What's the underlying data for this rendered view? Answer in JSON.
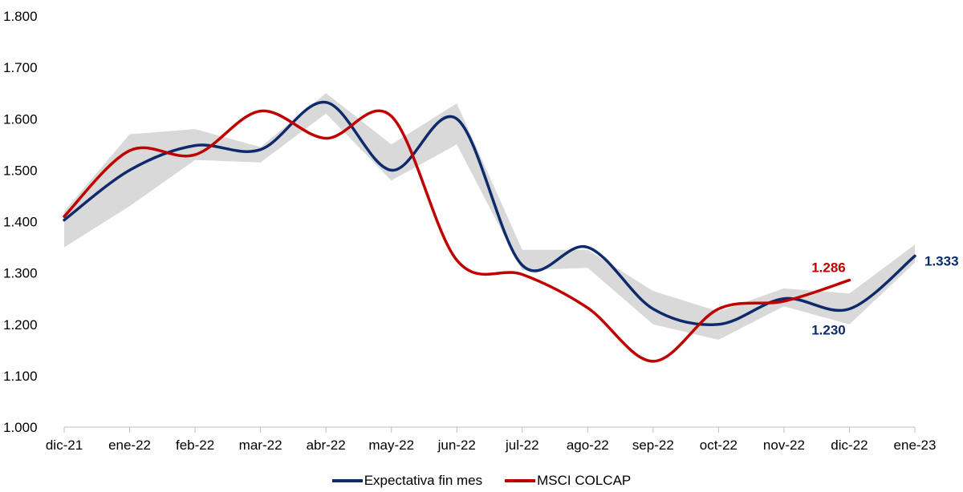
{
  "chart_data": {
    "type": "line",
    "categories": [
      "dic-21",
      "ene-22",
      "feb-22",
      "mar-22",
      "abr-22",
      "may-22",
      "jun-22",
      "jul-22",
      "ago-22",
      "sep-22",
      "oct-22",
      "nov-22",
      "dic-22",
      "ene-23"
    ],
    "ylim": [
      1000,
      1800
    ],
    "yticks": [
      "1.000",
      "1.100",
      "1.200",
      "1.300",
      "1.400",
      "1.500",
      "1.600",
      "1.700",
      "1.800"
    ],
    "grid": false,
    "legend_position": "bottom",
    "band": {
      "upper": [
        1420,
        1570,
        1580,
        1545,
        1650,
        1550,
        1630,
        1345,
        1345,
        1265,
        1225,
        1270,
        1260,
        1355
      ],
      "lower": [
        1350,
        1430,
        1520,
        1515,
        1610,
        1480,
        1550,
        1305,
        1310,
        1200,
        1170,
        1235,
        1200,
        1320
      ],
      "color": "#d9d9d9"
    },
    "series": [
      {
        "name": "Expectativa fin mes",
        "color": "#0d2a6b",
        "values": [
          1403,
          1500,
          1548,
          1540,
          1632,
          1500,
          1600,
          1315,
          1350,
          1230,
          1200,
          1250,
          1230,
          1333
        ]
      },
      {
        "name": "MSCI COLCAP",
        "color": "#c00000",
        "values": [
          1410,
          1538,
          1530,
          1615,
          1562,
          1605,
          1325,
          1297,
          1232,
          1128,
          1230,
          1245,
          1286,
          null
        ]
      }
    ],
    "data_labels": [
      {
        "text": "1.286",
        "series": 1,
        "index": 12,
        "color": "#c00000"
      },
      {
        "text": "1.230",
        "series": 0,
        "index": 12,
        "color": "#0d2a6b"
      },
      {
        "text": "1.333",
        "series": 0,
        "index": 13,
        "color": "#0d2a6b"
      }
    ]
  }
}
